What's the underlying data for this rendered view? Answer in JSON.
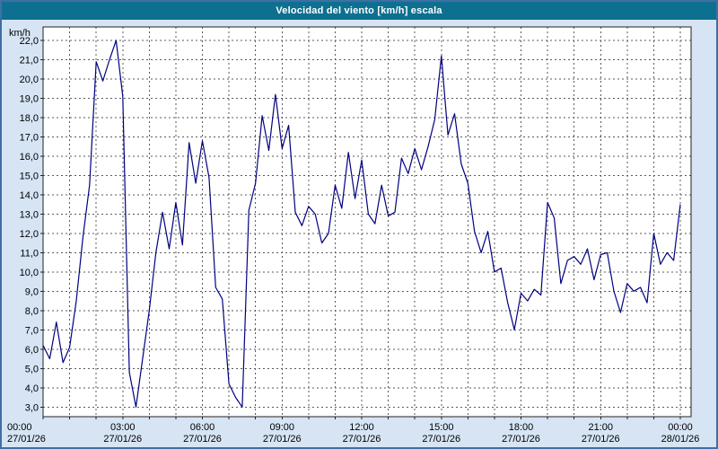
{
  "window": {
    "title": "Velocidad del viento [km/h] escala"
  },
  "colors": {
    "titlebar_bg": "#0e7090",
    "titlebar_text": "#ffffff",
    "window_border": "#3e6fa5",
    "outer_bg": "#d6e4f4",
    "plot_bg": "#ffffff",
    "grid": "#5a5a5a",
    "frame": "#222222",
    "line": "#00007f"
  },
  "chart_data": {
    "type": "line",
    "title": "Velocidad del viento [km/h] escala",
    "xlabel": "",
    "ylabel": "km/h",
    "y_min": 3.0,
    "y_max": 22.0,
    "y_step": 1.0,
    "y_render_min": 2.5,
    "y_render_max": 22.7,
    "decimal_separator": ",",
    "grid": "dashed",
    "legend": "none",
    "x_span_hours": 24,
    "x_minor_grid_hours": 1,
    "x_ticks": [
      {
        "time": "00:00",
        "date": "27/01/26",
        "hour": 0
      },
      {
        "time": "03:00",
        "date": "27/01/26",
        "hour": 3
      },
      {
        "time": "06:00",
        "date": "27/01/26",
        "hour": 6
      },
      {
        "time": "09:00",
        "date": "27/01/26",
        "hour": 9
      },
      {
        "time": "12:00",
        "date": "27/01/26",
        "hour": 12
      },
      {
        "time": "15:00",
        "date": "27/01/26",
        "hour": 15
      },
      {
        "time": "18:00",
        "date": "27/01/26",
        "hour": 18
      },
      {
        "time": "21:00",
        "date": "27/01/26",
        "hour": 21
      },
      {
        "time": "00:00",
        "date": "28/01/26",
        "hour": 24
      }
    ],
    "series": [
      {
        "name": "Velocidad del viento [km/h]",
        "start_hour": 0,
        "interval_minutes": 15,
        "values": [
          6.2,
          5.5,
          7.4,
          5.3,
          6.1,
          8.5,
          11.8,
          14.5,
          20.9,
          19.9,
          21.0,
          22.0,
          19.1,
          4.8,
          3.0,
          5.5,
          8.0,
          11.0,
          13.1,
          11.2,
          13.6,
          11.4,
          16.7,
          14.6,
          16.8,
          14.9,
          9.2,
          8.6,
          4.2,
          3.5,
          3.0,
          13.2,
          14.6,
          18.1,
          16.3,
          19.2,
          16.4,
          17.6,
          13.1,
          12.4,
          13.4,
          13.0,
          11.5,
          12.0,
          14.5,
          13.3,
          16.2,
          13.8,
          15.8,
          13.0,
          12.5,
          14.5,
          12.9,
          13.1,
          15.9,
          15.1,
          16.4,
          15.3,
          16.5,
          17.9,
          21.2,
          17.1,
          18.2,
          15.6,
          14.6,
          12.1,
          11.0,
          12.1,
          10.0,
          10.2,
          8.4,
          7.0,
          8.9,
          8.5,
          9.1,
          8.8,
          13.6,
          12.8,
          9.4,
          10.6,
          10.8,
          10.4,
          11.2,
          9.6,
          10.9,
          11.0,
          9.0,
          7.9,
          9.4,
          9.0,
          9.2,
          8.4,
          12.0,
          10.4,
          11.0,
          10.6,
          13.5
        ]
      }
    ]
  }
}
